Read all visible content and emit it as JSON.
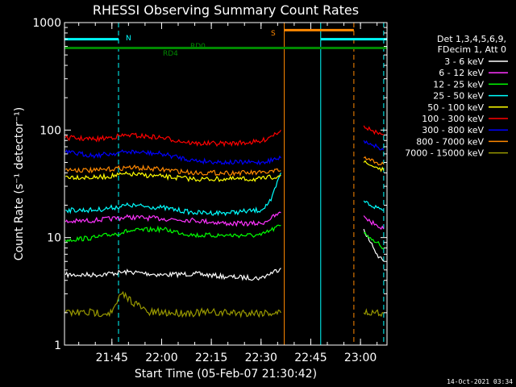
{
  "chart_data": {
    "type": "line",
    "title": "RHESSI Observing Summary Count Rates",
    "xlabel": "Start Time (05-Feb-07 21:30:42)",
    "ylabel": "Count Rate (s⁻¹ detector⁻¹)",
    "y_scale": "log",
    "ylim": [
      1,
      1000
    ],
    "xlim": [
      "21:30:42",
      "23:08:00"
    ],
    "x_ticks": [
      "21:45",
      "22:00",
      "22:15",
      "22:30",
      "22:45",
      "23:00"
    ],
    "y_ticks": [
      "1",
      "10",
      "100",
      "1000"
    ],
    "legend_header": [
      "Det 1,3,4,5,6,9,",
      "FDecim 1, Att 0"
    ],
    "legend_placement": "right",
    "series": [
      {
        "name": "3 - 6 keV",
        "color": "#ffffff",
        "segments": [
          {
            "x": [
              "21:31",
              "21:40",
              "21:50",
              "22:00",
              "22:10",
              "22:20",
              "22:30",
              "22:36"
            ],
            "y": [
              4.5,
              4.5,
              4.8,
              4.5,
              4.6,
              4.3,
              4.2,
              5.2
            ]
          },
          {
            "x": [
              "23:01",
              "23:03",
              "23:05",
              "23:07"
            ],
            "y": [
              12,
              9,
              7,
              6
            ]
          }
        ]
      },
      {
        "name": "6 - 12 keV",
        "color": "#ff33ff",
        "segments": [
          {
            "x": [
              "21:31",
              "21:40",
              "21:50",
              "22:00",
              "22:10",
              "22:20",
              "22:30",
              "22:36"
            ],
            "y": [
              14,
              14.5,
              15.5,
              15,
              14.5,
              13.5,
              13.5,
              17
            ]
          },
          {
            "x": [
              "23:01",
              "23:03",
              "23:05",
              "23:07"
            ],
            "y": [
              16,
              14,
              13,
              12
            ]
          }
        ]
      },
      {
        "name": "12 - 25 keV",
        "color": "#00ff00",
        "segments": [
          {
            "x": [
              "21:31",
              "21:40",
              "21:50",
              "22:00",
              "22:10",
              "22:20",
              "22:30",
              "22:36"
            ],
            "y": [
              9.5,
              10,
              11.5,
              12,
              10.5,
              10.5,
              10.5,
              13
            ]
          },
          {
            "x": [
              "23:01",
              "23:03",
              "23:05",
              "23:07"
            ],
            "y": [
              11,
              10,
              9,
              8
            ]
          }
        ]
      },
      {
        "name": "25 - 50 keV",
        "color": "#00ffff",
        "segments": [
          {
            "x": [
              "21:31",
              "21:40",
              "21:50",
              "22:00",
              "22:10",
              "22:20",
              "22:30",
              "22:33",
              "22:36"
            ],
            "y": [
              18,
              18,
              20,
              19,
              17,
              17,
              18,
              22,
              40
            ]
          },
          {
            "x": [
              "23:01",
              "23:03",
              "23:05",
              "23:07"
            ],
            "y": [
              22,
              20,
              19,
              18
            ]
          }
        ]
      },
      {
        "name": "50 - 100 keV",
        "color": "#ffff00",
        "segments": [
          {
            "x": [
              "21:31",
              "21:40",
              "21:50",
              "22:00",
              "22:10",
              "22:20",
              "22:30",
              "22:36"
            ],
            "y": [
              37,
              36,
              39,
              37,
              35,
              35,
              35,
              38
            ]
          },
          {
            "x": [
              "23:01",
              "23:03",
              "23:05",
              "23:07"
            ],
            "y": [
              50,
              47,
              45,
              42
            ]
          }
        ]
      },
      {
        "name": "100 - 300 keV",
        "color": "#ff0000",
        "segments": [
          {
            "x": [
              "21:31",
              "21:40",
              "21:50",
              "22:00",
              "22:10",
              "22:20",
              "22:30",
              "22:36"
            ],
            "y": [
              85,
              82,
              90,
              85,
              75,
              75,
              78,
              100
            ]
          },
          {
            "x": [
              "23:01",
              "23:03",
              "23:05",
              "23:07"
            ],
            "y": [
              110,
              100,
              95,
              90
            ]
          }
        ]
      },
      {
        "name": "300 - 800 keV",
        "color": "#0000ff",
        "segments": [
          {
            "x": [
              "21:31",
              "21:40",
              "21:50",
              "22:00",
              "22:10",
              "22:20",
              "22:30",
              "22:36"
            ],
            "y": [
              62,
              58,
              63,
              60,
              52,
              50,
              50,
              55
            ]
          },
          {
            "x": [
              "23:01",
              "23:03",
              "23:05",
              "23:07"
            ],
            "y": [
              80,
              75,
              70,
              65
            ]
          }
        ]
      },
      {
        "name": "800 - 7000 keV",
        "color": "#ff8800",
        "segments": [
          {
            "x": [
              "21:31",
              "21:40",
              "21:50",
              "22:00",
              "22:10",
              "22:20",
              "22:30",
              "22:36"
            ],
            "y": [
              43,
              42,
              45,
              43,
              40,
              40,
              40,
              42
            ]
          },
          {
            "x": [
              "23:01",
              "23:03",
              "23:05",
              "23:07"
            ],
            "y": [
              55,
              52,
              50,
              48
            ]
          }
        ]
      },
      {
        "name": "7000 - 15000 keV",
        "color": "#999900",
        "segments": [
          {
            "x": [
              "21:31",
              "21:45",
              "21:48",
              "21:56",
              "22:07",
              "22:15",
              "22:25",
              "22:36"
            ],
            "y": [
              2,
              2,
              3,
              2,
              2,
              2,
              2,
              2
            ]
          },
          {
            "x": [
              "23:01",
              "23:04",
              "23:07"
            ],
            "y": [
              2,
              2,
              2
            ]
          }
        ]
      }
    ],
    "annotations": [
      {
        "text": "N",
        "color": "#00ffff"
      },
      {
        "text": "S",
        "color": "#ff8800"
      },
      {
        "text": "RD0",
        "color": "#008800"
      },
      {
        "text": "RD4",
        "color": "#008800"
      }
    ],
    "flag_bars": [
      {
        "name": "night",
        "color": "#00ffff",
        "x": [
          [
            "21:30:42",
            "21:47"
          ],
          [
            "22:48",
            "23:08"
          ]
        ],
        "y": 700
      },
      {
        "name": "saa",
        "color": "#ff8800",
        "x": [
          [
            "22:37",
            "22:58"
          ]
        ],
        "y": 850
      },
      {
        "name": "decimation",
        "color": "#008800",
        "x": [
          [
            "21:30:42",
            "23:08"
          ]
        ],
        "y": 580
      }
    ],
    "vertical_markers": [
      {
        "time": "21:30:42",
        "color": "#00ffff",
        "style": "solid"
      },
      {
        "time": "21:47",
        "color": "#00ffff",
        "style": "dashed"
      },
      {
        "time": "22:37",
        "color": "#ff8800",
        "style": "solid"
      },
      {
        "time": "22:48",
        "color": "#00ffff",
        "style": "solid"
      },
      {
        "time": "22:58",
        "color": "#ff8800",
        "style": "dashed"
      },
      {
        "time": "23:07",
        "color": "#00ffff",
        "style": "dashed"
      }
    ],
    "footer_timestamp": "14-Oct-2021 03:34"
  }
}
